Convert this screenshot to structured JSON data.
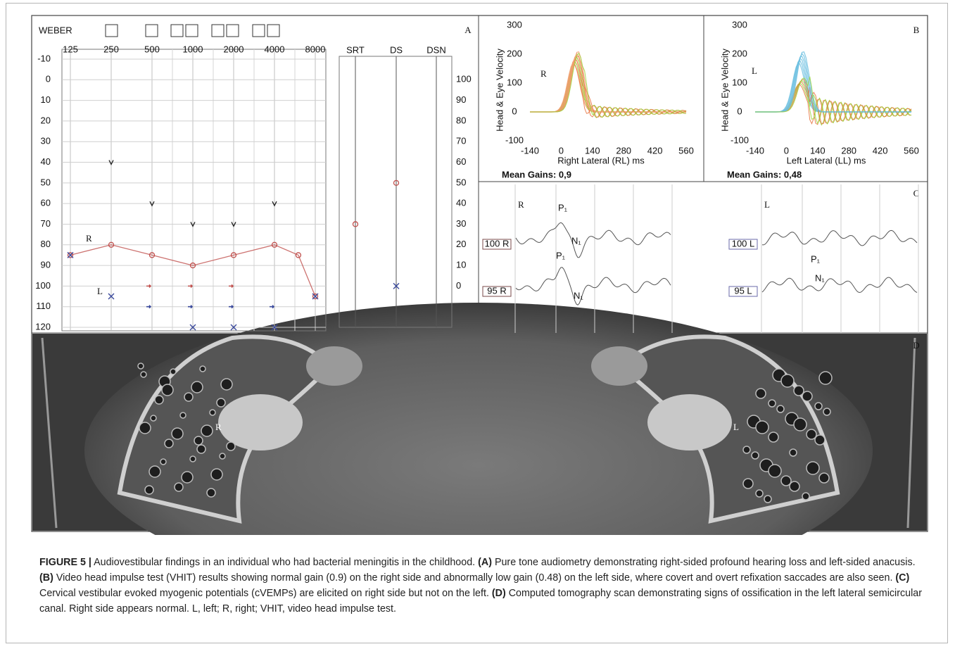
{
  "panel_labels": [
    "A",
    "B",
    "C",
    "D"
  ],
  "audiogram": {
    "weber_label": "WEBER",
    "frequencies": [
      125,
      250,
      500,
      1000,
      2000,
      4000,
      8000
    ],
    "ylim": [
      -10,
      120
    ],
    "yticks": [
      -10,
      0,
      10,
      20,
      30,
      40,
      50,
      60,
      70,
      80,
      90,
      100,
      110,
      120
    ],
    "right_ylim": [
      110,
      -20
    ],
    "right_ticks": [
      100,
      90,
      80,
      70,
      60,
      50,
      40,
      30,
      20,
      10,
      0
    ],
    "speech_headers": [
      "SRT",
      "DS",
      "DSN"
    ],
    "ear_labels": [
      "R",
      "L"
    ],
    "right_air": {
      "x": [
        125,
        250,
        500,
        1000,
        2000,
        4000,
        6000,
        8000
      ],
      "values": [
        85,
        80,
        85,
        90,
        85,
        80,
        85,
        105
      ],
      "color": "#c0504d"
    },
    "left_air": {
      "x": [
        125,
        250,
        1000,
        2000,
        4000,
        8000
      ],
      "values": [
        85,
        105,
        120,
        120,
        120,
        105
      ],
      "color": "#3b4a9c"
    },
    "bone": {
      "x": [
        250,
        500,
        1000,
        2000,
        4000
      ],
      "values": [
        40,
        60,
        70,
        70,
        60
      ],
      "color": "#222222"
    },
    "speech_right": [
      30,
      50,
      null
    ],
    "speech_left": [
      null,
      0,
      null
    ]
  },
  "vhit": {
    "ylabel": "Head & Eye Velocity",
    "xlim": [
      -140,
      560
    ],
    "ylim": [
      -100,
      300
    ],
    "xticks": [
      -140,
      0,
      140,
      280,
      420,
      560
    ],
    "yticks": [
      -100,
      0,
      100,
      200,
      300
    ],
    "panels": [
      {
        "ear": "R",
        "xlabel": "Right Lateral (RL) ms",
        "gain_text": "Mean Gains: 0,9"
      },
      {
        "ear": "L",
        "xlabel": "Left Lateral (LL) ms",
        "gain_text": "Mean Gains: 0,48"
      }
    ]
  },
  "vemp": {
    "sides": [
      {
        "ear": "R",
        "traces": [
          "100 R",
          "95 R"
        ]
      },
      {
        "ear": "L",
        "traces": [
          "100 L",
          "95 L"
        ]
      }
    ],
    "peak_labels": [
      "P₁",
      "N₁"
    ]
  },
  "ct": {
    "labels": [
      "R",
      "L"
    ]
  },
  "caption": {
    "label": "FIGURE 5 |",
    "intro": " Audiovestibular findings in an individual who had bacterial meningitis in the childhood. ",
    "parts": [
      {
        "tag": "(A)",
        "text": " Pure tone audiometry demonstrating right-sided profound hearing loss and left-sided anacusis. "
      },
      {
        "tag": "(B)",
        "text": " Video head impulse test (VHIT) results showing normal gain (0.9) on the right side and abnormally low gain (0.48) on the left side, where covert and overt refixation saccades are also seen. "
      },
      {
        "tag": "(C)",
        "text": " Cervical vestibular evoked myogenic potentials (cVEMPs) are elicited on right side but not on the left. "
      },
      {
        "tag": "(D)",
        "text": " Computed tomography scan demonstrating signs of ossification in the left lateral semicircular canal. Right side appears normal. L, left; R, right; VHIT, video head impulse test."
      }
    ]
  }
}
